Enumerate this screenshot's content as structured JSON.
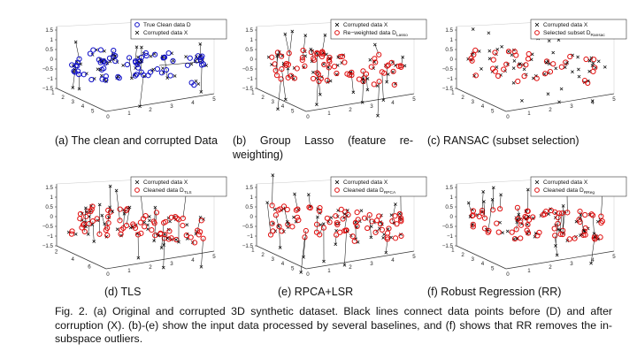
{
  "figure": {
    "caption": {
      "label": "Fig. 2.",
      "text": "(a) Original and corrupted 3D synthetic dataset. Black lines connect data points before (D) and after corruption (X). (b)-(e) show the input data processed by several baselines, and (f) shows that RR removes the in-subspace outliers."
    },
    "panels": [
      {
        "caption": "(a)  The clean and corrupted Data",
        "legend": [
          {
            "label": "True Clean data D",
            "marker": "circle",
            "color": "#1010c8"
          },
          {
            "label": "Corrupted data X",
            "marker": "x",
            "color": "#000000"
          }
        ]
      },
      {
        "caption": "(b)  Group  Lasso  (feature  re-weighting)",
        "legend": [
          {
            "label": "Corrupted data X",
            "marker": "x",
            "color": "#000000"
          },
          {
            "label": "Re−weighted data D",
            "sub": "Lasso",
            "marker": "circle",
            "color": "#e01010"
          }
        ]
      },
      {
        "caption": "(c)  RANSAC (subset selection)",
        "legend": [
          {
            "label": "Corrupted data X",
            "marker": "x",
            "color": "#000000"
          },
          {
            "label": "Selected subset D",
            "sub": "Ransac",
            "marker": "circle",
            "color": "#e01010"
          }
        ]
      },
      {
        "caption": "(d)  TLS",
        "legend": [
          {
            "label": "Corrupted data X",
            "marker": "x",
            "color": "#000000"
          },
          {
            "label": "Cleaned data D",
            "sub": "TLS",
            "marker": "circle",
            "color": "#e01010"
          }
        ]
      },
      {
        "caption": "(e)  RPCA+LSR",
        "legend": [
          {
            "label": "Corrupted data X",
            "marker": "x",
            "color": "#000000"
          },
          {
            "label": "Cleaned data D",
            "sub": "RPCA",
            "marker": "circle",
            "color": "#e01010"
          }
        ]
      },
      {
        "caption": "(f)  Robust Regression (RR)",
        "legend": [
          {
            "label": "Corrupted data X",
            "marker": "x",
            "color": "#000000"
          },
          {
            "label": "Cleaned data D",
            "sub": "RReg",
            "marker": "circle",
            "color": "#e01010"
          }
        ]
      }
    ],
    "axes": {
      "z_ticks": [
        "1.5",
        "1",
        "0.5",
        "0",
        "−0.5",
        "−1",
        "−1.5"
      ],
      "x_ticks": [
        "0",
        "1",
        "2",
        "3",
        "4",
        "5"
      ],
      "y_ticks_default": [
        "1",
        "2",
        "3",
        "4",
        "5"
      ],
      "y_ticks_d": [
        "2",
        "4",
        "6"
      ]
    }
  }
}
